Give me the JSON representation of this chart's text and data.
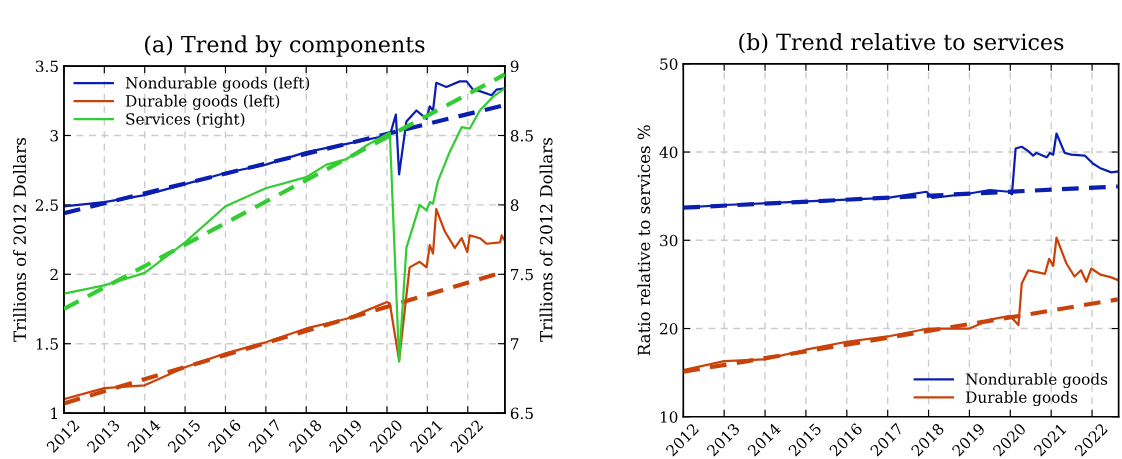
{
  "chart_data": [
    {
      "type": "line",
      "title": "(a) Trend by components",
      "ylabel": "Trillions of 2012 Dollars",
      "y2label": "Trillions of 2012 Dollars",
      "xlim": [
        2012,
        2022.92
      ],
      "xticks": [
        2012,
        2013,
        2014,
        2015,
        2016,
        2017,
        2018,
        2019,
        2020,
        2021,
        2022
      ],
      "ylim": [
        1,
        3.5
      ],
      "yticks": [
        1,
        1.5,
        2,
        2.5,
        3,
        3.5
      ],
      "y2lim": [
        6.5,
        9
      ],
      "y2ticks": [
        6.5,
        7,
        7.5,
        8,
        8.5,
        9
      ],
      "grid": true,
      "legend": "top left",
      "line_style": "solid",
      "marker": "none",
      "series": [
        {
          "name": "Nondurable goods (left)",
          "color": "#0a1fb0",
          "x": [
            2012,
            2013,
            2014,
            2015,
            2016,
            2017,
            2018,
            2019,
            2020,
            2020.07,
            2020.22,
            2020.3,
            2020.48,
            2020.73,
            2020.98,
            2021.06,
            2021.14,
            2021.22,
            2021.47,
            2021.8,
            2021.97,
            2022.13,
            2022.3,
            2022.59,
            2022.71,
            2022.92
          ],
          "values": [
            2.49,
            2.52,
            2.57,
            2.65,
            2.73,
            2.79,
            2.88,
            2.94,
            3.0,
            3.0,
            3.15,
            2.72,
            3.1,
            3.18,
            3.12,
            3.21,
            3.18,
            3.38,
            3.35,
            3.39,
            3.39,
            3.33,
            3.32,
            3.29,
            3.33,
            3.34
          ]
        },
        {
          "name": "Durable goods (left)",
          "color": "#c8420a",
          "x": [
            2012,
            2013,
            2014,
            2015,
            2016,
            2017,
            2018,
            2019,
            2019.5,
            2020,
            2020.07,
            2020.3,
            2020.56,
            2020.81,
            2020.98,
            2021.06,
            2021.14,
            2021.22,
            2021.43,
            2021.68,
            2021.85,
            2021.99,
            2022.05,
            2022.3,
            2022.47,
            2022.8,
            2022.84,
            2022.92
          ],
          "values": [
            1.1,
            1.18,
            1.2,
            1.33,
            1.43,
            1.51,
            1.61,
            1.68,
            1.74,
            1.8,
            1.79,
            1.38,
            2.05,
            2.09,
            2.05,
            2.21,
            2.15,
            2.47,
            2.31,
            2.19,
            2.26,
            2.16,
            2.28,
            2.26,
            2.22,
            2.23,
            2.28,
            2.24
          ]
        },
        {
          "name": "Services (right)",
          "color": "#33cc33",
          "axis": "y2",
          "x": [
            2012,
            2013,
            2014,
            2015,
            2016,
            2017,
            2018,
            2018.5,
            2019,
            2019.5,
            2020,
            2020.07,
            2020.3,
            2020.48,
            2020.81,
            2020.98,
            2021.06,
            2021.14,
            2021.26,
            2021.55,
            2021.85,
            2022.05,
            2022.3,
            2022.63,
            2022.92
          ],
          "values": [
            7.36,
            7.42,
            7.51,
            7.73,
            7.99,
            8.12,
            8.2,
            8.29,
            8.33,
            8.43,
            8.51,
            8.52,
            6.87,
            7.69,
            8.0,
            7.96,
            8.02,
            8.01,
            8.17,
            8.38,
            8.56,
            8.55,
            8.68,
            8.78,
            8.84
          ]
        },
        {
          "color": "#0a1fb0",
          "line_style": "dashed",
          "x": [
            2012,
            2022.92
          ],
          "values": [
            2.44,
            3.22
          ]
        },
        {
          "color": "#c8420a",
          "line_style": "dashed",
          "x": [
            2012,
            2022.92
          ],
          "values": [
            1.07,
            2.02
          ]
        },
        {
          "color": "#33cc33",
          "line_style": "dashed",
          "axis": "y2",
          "x": [
            2012,
            2022.92
          ],
          "values": [
            7.25,
            8.94
          ]
        }
      ]
    },
    {
      "type": "line",
      "title": "(b) Trend relative to services",
      "ylabel": "Ratio relative to services %",
      "xlim": [
        2012,
        2022.65
      ],
      "xticks": [
        2012,
        2013,
        2014,
        2015,
        2016,
        2017,
        2018,
        2019,
        2020,
        2021,
        2022
      ],
      "ylim": [
        10,
        50
      ],
      "yticks": [
        10,
        20,
        30,
        40,
        50
      ],
      "grid": true,
      "legend": "bottom right",
      "line_style": "solid",
      "marker": "none",
      "series": [
        {
          "name": "Nondurable goods",
          "color": "#0a1fb0",
          "x": [
            2012,
            2013,
            2015,
            2017,
            2017.95,
            2018.1,
            2019,
            2019.5,
            2019.96,
            2020.04,
            2020.13,
            2020.28,
            2020.44,
            2020.56,
            2020.64,
            2020.89,
            2020.97,
            2021.05,
            2021.13,
            2021.33,
            2021.49,
            2021.82,
            2022.02,
            2022.19,
            2022.47,
            2022.63
          ],
          "values": [
            33.7,
            34.0,
            34.4,
            34.8,
            35.5,
            34.8,
            35.3,
            35.7,
            35.5,
            35.2,
            40.4,
            40.6,
            40.1,
            39.6,
            39.9,
            39.4,
            39.9,
            39.7,
            42.1,
            39.9,
            39.7,
            39.6,
            38.7,
            38.2,
            37.7,
            37.8
          ]
        },
        {
          "name": "Durable goods",
          "color": "#c8420a",
          "x": [
            2012,
            2013,
            2014,
            2015,
            2016,
            2017,
            2018,
            2019,
            2019.5,
            2019.96,
            2020.04,
            2020.2,
            2020.28,
            2020.44,
            2020.85,
            2020.95,
            2021.05,
            2021.13,
            2021.37,
            2021.57,
            2021.73,
            2021.86,
            2021.98,
            2022.21,
            2022.47,
            2022.63
          ],
          "values": [
            15.3,
            16.3,
            16.5,
            17.6,
            18.5,
            19.1,
            20.0,
            20.0,
            21.0,
            21.4,
            21.2,
            20.4,
            25.1,
            26.6,
            26.2,
            27.9,
            27.1,
            30.3,
            27.4,
            25.9,
            26.6,
            25.3,
            26.8,
            26.1,
            25.8,
            25.5
          ]
        },
        {
          "color": "#0a1fb0",
          "line_style": "dashed",
          "x": [
            2012,
            2022.63
          ],
          "values": [
            33.7,
            36.1
          ]
        },
        {
          "color": "#c8420a",
          "line_style": "dashed",
          "x": [
            2012,
            2022.63
          ],
          "values": [
            15.1,
            23.3
          ]
        }
      ]
    }
  ]
}
